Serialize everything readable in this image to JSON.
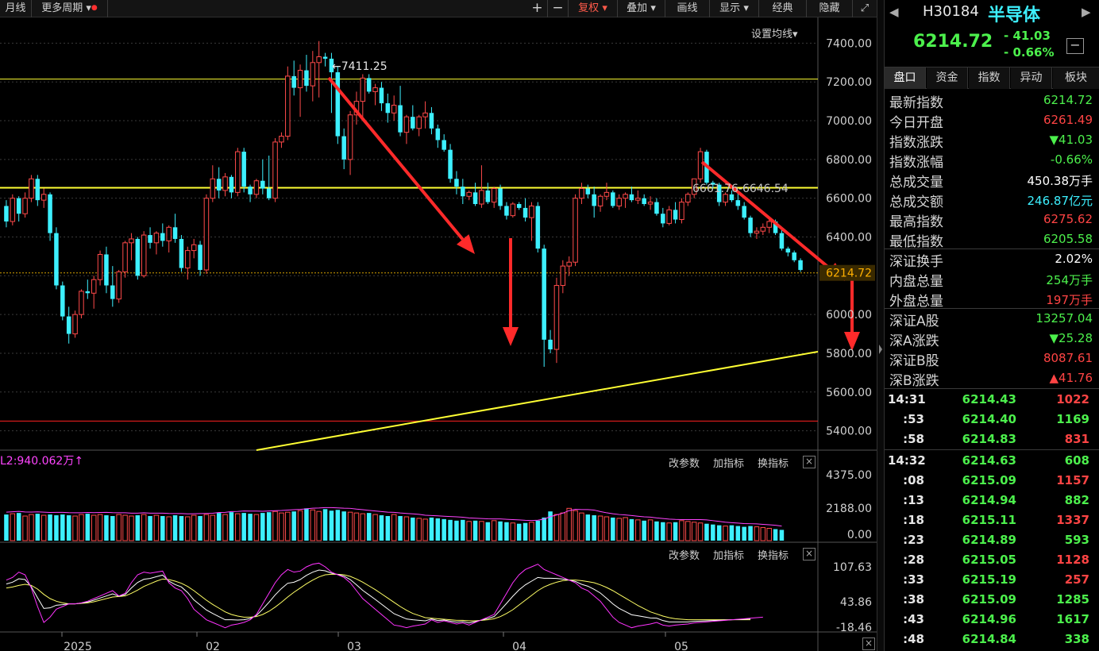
{
  "toolbar": {
    "left": [
      "月线",
      "更多周期"
    ],
    "right": [
      "复权",
      "叠加",
      "画线",
      "显示",
      "经典",
      "隐藏"
    ]
  },
  "chart": {
    "ma_setting_label": "设置均线",
    "peak_label": "7411.25",
    "range_label": "6661.76-6646.54",
    "last_price_tag": "6214.72",
    "sub_buttons": [
      "改参数",
      "加指标",
      "换指标"
    ],
    "volume_legend": "L2:940.062万",
    "y_price_ticks": [
      "7400.00",
      "7200.00",
      "7000.00",
      "6800.00",
      "6600.00",
      "6400.00",
      "6200.00",
      "6000.00",
      "5800.00",
      "5600.00",
      "5400.00"
    ],
    "y_volume_ticks": [
      "4375.00",
      "2188.00",
      "0.00"
    ],
    "y_osc_ticks": [
      "107.63",
      "43.86",
      "-18.46"
    ],
    "x_labels": [
      "2025",
      "02",
      "03",
      "04",
      "05"
    ]
  },
  "chart_data": {
    "type": "candlestick",
    "note_axis": "日K",
    "ylim": [
      5300,
      7500
    ],
    "candles": [
      [
        6560,
        6590,
        6450,
        6480
      ],
      [
        6480,
        6620,
        6460,
        6600
      ],
      [
        6600,
        6610,
        6480,
        6520
      ],
      [
        6520,
        6630,
        6500,
        6600
      ],
      [
        6600,
        6720,
        6580,
        6700
      ],
      [
        6700,
        6720,
        6560,
        6590
      ],
      [
        6590,
        6650,
        6550,
        6620
      ],
      [
        6620,
        6630,
        6380,
        6420
      ],
      [
        6420,
        6450,
        6130,
        6150
      ],
      [
        6150,
        6170,
        5970,
        5990
      ],
      [
        5990,
        6040,
        5850,
        5900
      ],
      [
        5900,
        6020,
        5880,
        6000
      ],
      [
        6000,
        6130,
        5980,
        6120
      ],
      [
        6120,
        6180,
        6080,
        6110
      ],
      [
        6110,
        6200,
        6030,
        6180
      ],
      [
        6180,
        6330,
        6150,
        6310
      ],
      [
        6310,
        6350,
        6110,
        6150
      ],
      [
        6150,
        6250,
        6040,
        6080
      ],
      [
        6080,
        6230,
        6060,
        6220
      ],
      [
        6220,
        6380,
        6190,
        6370
      ],
      [
        6370,
        6420,
        6280,
        6390
      ],
      [
        6390,
        6400,
        6180,
        6200
      ],
      [
        6200,
        6430,
        6190,
        6410
      ],
      [
        6410,
        6450,
        6340,
        6370
      ],
      [
        6370,
        6430,
        6310,
        6420
      ],
      [
        6420,
        6470,
        6350,
        6380
      ],
      [
        6380,
        6460,
        6320,
        6450
      ],
      [
        6450,
        6520,
        6370,
        6390
      ],
      [
        6390,
        6410,
        6220,
        6240
      ],
      [
        6240,
        6350,
        6180,
        6330
      ],
      [
        6330,
        6390,
        6290,
        6360
      ],
      [
        6360,
        6380,
        6200,
        6230
      ],
      [
        6230,
        6620,
        6210,
        6600
      ],
      [
        6600,
        6770,
        6580,
        6700
      ],
      [
        6700,
        6760,
        6600,
        6640
      ],
      [
        6640,
        6730,
        6610,
        6710
      ],
      [
        6710,
        6720,
        6600,
        6630
      ],
      [
        6630,
        6860,
        6610,
        6840
      ],
      [
        6840,
        6860,
        6630,
        6660
      ],
      [
        6660,
        6670,
        6580,
        6620
      ],
      [
        6620,
        6700,
        6600,
        6690
      ],
      [
        6690,
        6800,
        6620,
        6650
      ],
      [
        6650,
        6820,
        6590,
        6600
      ],
      [
        6600,
        6910,
        6580,
        6890
      ],
      [
        6890,
        6940,
        6860,
        6920
      ],
      [
        6920,
        7280,
        6900,
        7230
      ],
      [
        7230,
        7310,
        7130,
        7170
      ],
      [
        7170,
        7290,
        7020,
        7260
      ],
      [
        7260,
        7340,
        7150,
        7180
      ],
      [
        7180,
        7360,
        7100,
        7300
      ],
      [
        7300,
        7411,
        7120,
        7330
      ],
      [
        7330,
        7350,
        7280,
        7320
      ],
      [
        7320,
        7350,
        7040,
        7250
      ],
      [
        7250,
        7280,
        6880,
        6920
      ],
      [
        6920,
        6960,
        6750,
        6800
      ],
      [
        6800,
        7050,
        6720,
        7030
      ],
      [
        7030,
        7150,
        6980,
        7100
      ],
      [
        7100,
        7240,
        7020,
        7220
      ],
      [
        7220,
        7240,
        7140,
        7150
      ],
      [
        7150,
        7190,
        7080,
        7170
      ],
      [
        7170,
        7200,
        7050,
        7090
      ],
      [
        7090,
        7140,
        6990,
        7040
      ],
      [
        7040,
        7130,
        7000,
        7080
      ],
      [
        7080,
        7180,
        6920,
        6940
      ],
      [
        6940,
        7030,
        6880,
        7020
      ],
      [
        7020,
        7080,
        6950,
        6960
      ],
      [
        6960,
        7030,
        6920,
        7020
      ],
      [
        7020,
        7100,
        6960,
        7040
      ],
      [
        7040,
        7070,
        6930,
        6960
      ],
      [
        6960,
        6980,
        6860,
        6900
      ],
      [
        6900,
        6930,
        6840,
        6850
      ],
      [
        6850,
        6880,
        6680,
        6700
      ],
      [
        6700,
        6740,
        6620,
        6660
      ],
      [
        6660,
        6700,
        6570,
        6610
      ],
      [
        6610,
        6640,
        6590,
        6630
      ],
      [
        6630,
        6680,
        6560,
        6570
      ],
      [
        6570,
        6770,
        6550,
        6640
      ],
      [
        6640,
        6680,
        6570,
        6580
      ],
      [
        6580,
        6660,
        6550,
        6650
      ],
      [
        6650,
        6670,
        6540,
        6560
      ],
      [
        6560,
        6580,
        6490,
        6510
      ],
      [
        6510,
        6580,
        6500,
        6570
      ],
      [
        6570,
        6580,
        6540,
        6550
      ],
      [
        6550,
        6600,
        6480,
        6500
      ],
      [
        6500,
        6580,
        6380,
        6560
      ],
      [
        6560,
        6580,
        6320,
        6340
      ],
      [
        6340,
        6360,
        5730,
        5870
      ],
      [
        5870,
        5920,
        5800,
        5820
      ],
      [
        5820,
        6190,
        5750,
        6150
      ],
      [
        6150,
        6280,
        6110,
        6250
      ],
      [
        6250,
        6300,
        6200,
        6270
      ],
      [
        6270,
        6620,
        6250,
        6600
      ],
      [
        6600,
        6680,
        6570,
        6650
      ],
      [
        6650,
        6670,
        6600,
        6620
      ],
      [
        6620,
        6660,
        6500,
        6560
      ],
      [
        6560,
        6620,
        6530,
        6610
      ],
      [
        6610,
        6680,
        6590,
        6630
      ],
      [
        6630,
        6640,
        6550,
        6560
      ],
      [
        6560,
        6620,
        6540,
        6600
      ],
      [
        6600,
        6630,
        6550,
        6620
      ],
      [
        6620,
        6660,
        6580,
        6590
      ],
      [
        6590,
        6640,
        6570,
        6600
      ],
      [
        6600,
        6620,
        6560,
        6570
      ],
      [
        6570,
        6610,
        6540,
        6580
      ],
      [
        6580,
        6600,
        6510,
        6520
      ],
      [
        6520,
        6550,
        6450,
        6470
      ],
      [
        6470,
        6560,
        6460,
        6540
      ],
      [
        6540,
        6580,
        6470,
        6490
      ],
      [
        6490,
        6600,
        6470,
        6580
      ],
      [
        6580,
        6630,
        6560,
        6620
      ],
      [
        6620,
        6700,
        6600,
        6700
      ],
      [
        6700,
        6860,
        6680,
        6840
      ],
      [
        6840,
        6850,
        6670,
        6680
      ],
      [
        6680,
        6690,
        6650,
        6670
      ],
      [
        6670,
        6680,
        6560,
        6580
      ],
      [
        6580,
        6630,
        6560,
        6620
      ],
      [
        6620,
        6640,
        6580,
        6590
      ],
      [
        6590,
        6630,
        6540,
        6560
      ],
      [
        6560,
        6580,
        6490,
        6500
      ],
      [
        6500,
        6510,
        6400,
        6420
      ],
      [
        6420,
        6450,
        6390,
        6430
      ],
      [
        6430,
        6470,
        6410,
        6450
      ],
      [
        6450,
        6490,
        6420,
        6480
      ],
      [
        6480,
        6490,
        6410,
        6420
      ],
      [
        6420,
        6440,
        6330,
        6340
      ],
      [
        6340,
        6350,
        6300,
        6320
      ],
      [
        6320,
        6330,
        6270,
        6280
      ],
      [
        6280,
        6290,
        6220,
        6230
      ]
    ],
    "horizontal_lines": [
      {
        "value": 7215,
        "color": "#ffff33"
      },
      {
        "value": 6654,
        "color": "#ffff33"
      },
      {
        "value": 5450,
        "color": "#ff2020"
      },
      {
        "value": 6214.72,
        "color": "#d4a000"
      }
    ],
    "trend_line": {
      "from": [
        40,
        5300
      ],
      "to": [
        150,
        5800
      ],
      "color": "#ffff33"
    },
    "volume": [
      1700,
      1750,
      1800,
      1600,
      1700,
      1750,
      1650,
      1700,
      1650,
      1700,
      1650,
      1600,
      1700,
      1750,
      1650,
      1700,
      1650,
      1600,
      1700,
      1650,
      1600,
      1650,
      1700,
      1600,
      1650,
      1600,
      1550,
      1650,
      1600,
      1550,
      1650,
      1600,
      1700,
      1650,
      1800,
      1700,
      1850,
      1750,
      1800,
      1750,
      1700,
      1800,
      1850,
      1900,
      1800,
      1850,
      1900,
      1950,
      2100,
      2000,
      1900,
      2050,
      1950,
      2000,
      1900,
      1850,
      1800,
      1750,
      1800,
      1700,
      1650,
      1600,
      1700,
      1600,
      1550,
      1500,
      1450,
      1400,
      1500,
      1450,
      1400,
      1350,
      1300,
      1350,
      1250,
      1300,
      1250,
      1200,
      1300,
      1250,
      1200,
      1150,
      1100,
      1150,
      1200,
      1300,
      1500,
      1900,
      1700,
      1800,
      2100,
      1950,
      1800,
      1700,
      1650,
      1600,
      1550,
      1500,
      1450,
      1500,
      1400,
      1350,
      1300,
      1350,
      1250,
      1200,
      1150,
      1200,
      1300,
      1250,
      1200,
      1150,
      1100,
      1050,
      1000,
      950,
      1000,
      950,
      900,
      950,
      900,
      850,
      800,
      750,
      700
    ],
    "osc_k": [
      75,
      80,
      90,
      85,
      60,
      25,
      -5,
      5,
      20,
      25,
      30,
      30,
      32,
      35,
      40,
      45,
      50,
      55,
      45,
      50,
      70,
      85,
      90,
      88,
      90,
      92,
      70,
      60,
      55,
      40,
      20,
      10,
      0,
      -5,
      -10,
      -15,
      -10,
      -8,
      -5,
      0,
      10,
      30,
      50,
      70,
      85,
      95,
      90,
      92,
      100,
      105,
      107,
      100,
      90,
      85,
      80,
      70,
      55,
      40,
      30,
      20,
      10,
      0,
      -10,
      -12,
      -15,
      -12,
      -10,
      -8,
      0,
      -5,
      -2,
      -5,
      -8,
      -6,
      -10,
      -5,
      0,
      5,
      10,
      30,
      50,
      70,
      85,
      95,
      100,
      105,
      95,
      90,
      85,
      80,
      75,
      70,
      60,
      55,
      45,
      35,
      20,
      5,
      -5,
      -10,
      -15,
      -12,
      -10,
      -8,
      -5,
      -10,
      -12,
      -10,
      -9,
      -8,
      -6,
      -5,
      -4,
      -3,
      -2,
      -1,
      0,
      1,
      2,
      3,
      4,
      5
    ],
    "osc_d": [
      60,
      62,
      65,
      67,
      65,
      58,
      48,
      40,
      35,
      32,
      30,
      30,
      31,
      32,
      34,
      37,
      40,
      43,
      44,
      45,
      50,
      56,
      63,
      68,
      73,
      77,
      76,
      73,
      69,
      63,
      55,
      46,
      37,
      29,
      22,
      15,
      10,
      7,
      5,
      5,
      6,
      10,
      16,
      24,
      33,
      43,
      52,
      60,
      68,
      75,
      81,
      85,
      86,
      86,
      85,
      82,
      77,
      71,
      64,
      57,
      49,
      41,
      33,
      25,
      18,
      12,
      8,
      4,
      3,
      2,
      1,
      0,
      -1,
      -1,
      -2,
      -2,
      -1,
      0,
      2,
      6,
      12,
      19,
      28,
      37,
      46,
      55,
      62,
      67,
      71,
      74,
      75,
      75,
      74,
      72,
      70,
      66,
      61,
      55,
      48,
      41,
      34,
      27,
      21,
      15,
      11,
      7,
      4,
      2,
      1,
      0,
      0,
      0,
      0,
      0,
      0,
      0,
      0,
      0,
      0,
      0
    ]
  },
  "right_panel": {
    "code": "H30184",
    "name": "半导体",
    "price": "6214.72",
    "change": "- 41.03",
    "change_pct": "- 0.66%",
    "tabs": [
      "盘口",
      "资金",
      "指数",
      "异动",
      "板块"
    ],
    "quote_rows": [
      {
        "label": "最新指数",
        "value": "6214.72",
        "color": "#4cf04c"
      },
      {
        "label": "今日开盘",
        "value": "6261.49",
        "color": "#ff4444"
      },
      {
        "label": "指数涨跌",
        "value": "▼41.03",
        "color": "#4cf04c"
      },
      {
        "label": "指数涨幅",
        "value": "-0.66%",
        "color": "#4cf04c"
      },
      {
        "label": "总成交量",
        "value": "450.38万手",
        "color": "#ffffff"
      },
      {
        "label": "总成交额",
        "value": "246.87亿元",
        "color": "#3df0ff"
      },
      {
        "label": "最高指数",
        "value": "6275.62",
        "color": "#ff4444"
      },
      {
        "label": "最低指数",
        "value": "6205.58",
        "color": "#4cf04c"
      },
      {
        "label": "深证换手",
        "value": "2.02%",
        "color": "#ffffff"
      },
      {
        "label": "内盘总量",
        "value": "254万手",
        "color": "#4cf04c"
      },
      {
        "label": "外盘总量",
        "value": "197万手",
        "color": "#ff4444"
      },
      {
        "label": "深证A股",
        "value": "13257.04",
        "color": "#4cf04c"
      },
      {
        "label": "深A涨跌",
        "value": "▼25.28",
        "color": "#4cf04c"
      },
      {
        "label": "深证B股",
        "value": "8087.61",
        "color": "#ff4444"
      },
      {
        "label": "深B涨跌",
        "value": "▲41.76",
        "color": "#ff4444"
      }
    ],
    "ticks": [
      {
        "time": "14:31",
        "price": "6214.43",
        "vol": "1022",
        "vcolor": "#ff4444"
      },
      {
        "time": ":53",
        "price": "6214.40",
        "vol": "1169",
        "vcolor": "#4cf04c"
      },
      {
        "time": ":58",
        "price": "6214.83",
        "vol": "831",
        "vcolor": "#ff4444"
      },
      {
        "time": "14:32",
        "price": "6214.63",
        "vol": "608",
        "vcolor": "#4cf04c"
      },
      {
        "time": ":08",
        "price": "6215.09",
        "vol": "1157",
        "vcolor": "#ff4444"
      },
      {
        "time": ":13",
        "price": "6214.94",
        "vol": "882",
        "vcolor": "#4cf04c"
      },
      {
        "time": ":18",
        "price": "6215.11",
        "vol": "1337",
        "vcolor": "#ff4444"
      },
      {
        "time": ":23",
        "price": "6214.89",
        "vol": "593",
        "vcolor": "#4cf04c"
      },
      {
        "time": ":28",
        "price": "6215.05",
        "vol": "1128",
        "vcolor": "#ff4444"
      },
      {
        "time": ":33",
        "price": "6215.19",
        "vol": "257",
        "vcolor": "#ff4444"
      },
      {
        "time": ":38",
        "price": "6215.09",
        "vol": "1285",
        "vcolor": "#4cf04c"
      },
      {
        "time": ":43",
        "price": "6214.96",
        "vol": "1617",
        "vcolor": "#4cf04c"
      },
      {
        "time": ":48",
        "price": "6214.84",
        "vol": "338",
        "vcolor": "#4cf04c"
      }
    ]
  }
}
